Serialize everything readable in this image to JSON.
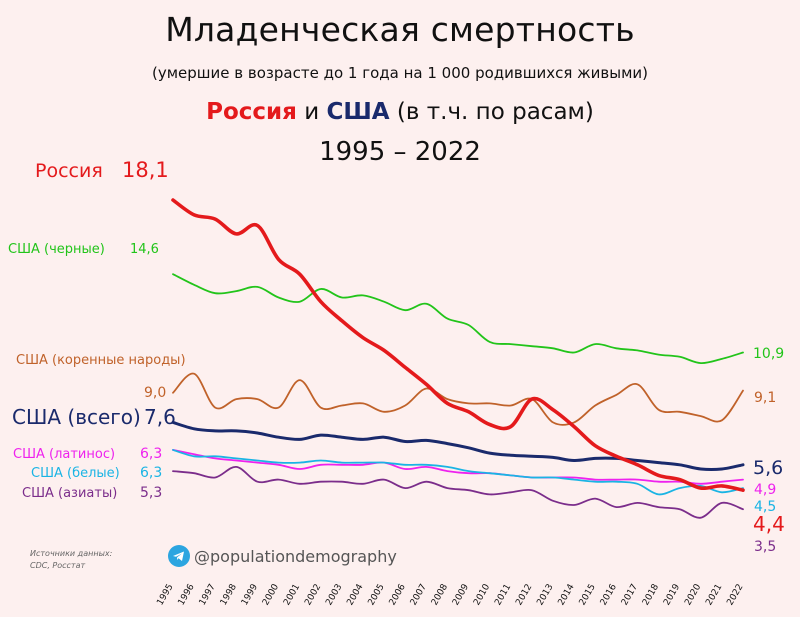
{
  "header": {
    "title": "Младенческая смертность",
    "subtitle": "(умершие в возрасте до 1 года на 1 000 родившихся живыми)",
    "line3_russia": "Россия",
    "line3_and": " и ",
    "line3_usa": "США",
    "line3_rest": " (в т.ч. по расам)",
    "period": "1995 – 2022"
  },
  "footer": {
    "source_line1": "Источники данных:",
    "source_line2": "CDC, Росстат",
    "handle": "@populationdemography"
  },
  "chart_data": {
    "type": "line",
    "x": [
      1995,
      1996,
      1997,
      1998,
      1999,
      2000,
      2001,
      2002,
      2003,
      2004,
      2005,
      2006,
      2007,
      2008,
      2009,
      2010,
      2011,
      2012,
      2013,
      2014,
      2015,
      2016,
      2017,
      2018,
      2019,
      2020,
      2021,
      2022
    ],
    "ylim": [
      2,
      19
    ],
    "grid": false,
    "series": [
      {
        "name": "Россия",
        "color": "#e41a1c",
        "start_label": "18,1",
        "end_label": "4,4",
        "values": [
          18.1,
          17.4,
          17.2,
          16.5,
          16.9,
          15.3,
          14.6,
          13.3,
          12.4,
          11.6,
          11.0,
          10.2,
          9.4,
          8.5,
          8.1,
          7.5,
          7.4,
          8.7,
          8.2,
          7.4,
          6.5,
          6.0,
          5.6,
          5.1,
          4.9,
          4.5,
          4.6,
          4.4
        ]
      },
      {
        "name": "США (черные)",
        "color": "#22c41a",
        "start_label": "14,6",
        "end_label": "10,9",
        "values": [
          14.6,
          14.1,
          13.7,
          13.8,
          14.0,
          13.5,
          13.3,
          13.9,
          13.5,
          13.6,
          13.3,
          12.9,
          13.2,
          12.5,
          12.2,
          11.4,
          11.3,
          11.2,
          11.1,
          10.9,
          11.3,
          11.1,
          11.0,
          10.8,
          10.7,
          10.4,
          10.6,
          10.9
        ]
      },
      {
        "name": "США (коренные народы)",
        "color": "#c0622a",
        "start_label": "9,0",
        "end_label": "9,1",
        "values": [
          9.0,
          9.9,
          8.3,
          8.7,
          8.7,
          8.3,
          9.6,
          8.3,
          8.4,
          8.5,
          8.1,
          8.4,
          9.2,
          8.7,
          8.5,
          8.5,
          8.4,
          8.7,
          7.6,
          7.6,
          8.4,
          8.9,
          9.4,
          8.2,
          8.1,
          7.9,
          7.7,
          9.1
        ]
      },
      {
        "name": "США (всего)",
        "color": "#1a2a6c",
        "start_label": "7,6",
        "end_label": "5,6",
        "values": [
          7.6,
          7.3,
          7.2,
          7.2,
          7.1,
          6.9,
          6.8,
          7.0,
          6.9,
          6.8,
          6.9,
          6.7,
          6.75,
          6.6,
          6.4,
          6.15,
          6.05,
          6.0,
          5.95,
          5.8,
          5.9,
          5.9,
          5.8,
          5.7,
          5.6,
          5.4,
          5.4,
          5.6
        ]
      },
      {
        "name": "США (латинос)",
        "color": "#ee22ee",
        "start_label": "6,3",
        "end_label": "4,9",
        "values": [
          6.3,
          6.1,
          5.9,
          5.8,
          5.7,
          5.6,
          5.4,
          5.6,
          5.6,
          5.6,
          5.7,
          5.4,
          5.5,
          5.3,
          5.2,
          5.2,
          5.1,
          5.0,
          5.0,
          5.0,
          4.9,
          4.9,
          4.9,
          4.8,
          4.8,
          4.7,
          4.8,
          4.9
        ]
      },
      {
        "name": "США (белые)",
        "color": "#1ab4e4",
        "start_label": "6,3",
        "end_label": "4,5",
        "values": [
          6.3,
          6.0,
          6.0,
          5.9,
          5.8,
          5.7,
          5.7,
          5.8,
          5.7,
          5.7,
          5.7,
          5.6,
          5.6,
          5.5,
          5.3,
          5.2,
          5.1,
          5.0,
          5.0,
          4.9,
          4.8,
          4.8,
          4.7,
          4.2,
          4.5,
          4.6,
          4.3,
          4.5
        ]
      },
      {
        "name": "США (азиаты)",
        "color": "#7b2d8b",
        "start_label": "5,3",
        "end_label": "3,5",
        "values": [
          5.3,
          5.2,
          5.0,
          5.5,
          4.8,
          4.9,
          4.7,
          4.8,
          4.8,
          4.7,
          4.9,
          4.5,
          4.8,
          4.5,
          4.4,
          4.2,
          4.3,
          4.4,
          3.9,
          3.7,
          4.0,
          3.6,
          3.8,
          3.6,
          3.5,
          3.1,
          3.8,
          3.5
        ]
      }
    ]
  }
}
